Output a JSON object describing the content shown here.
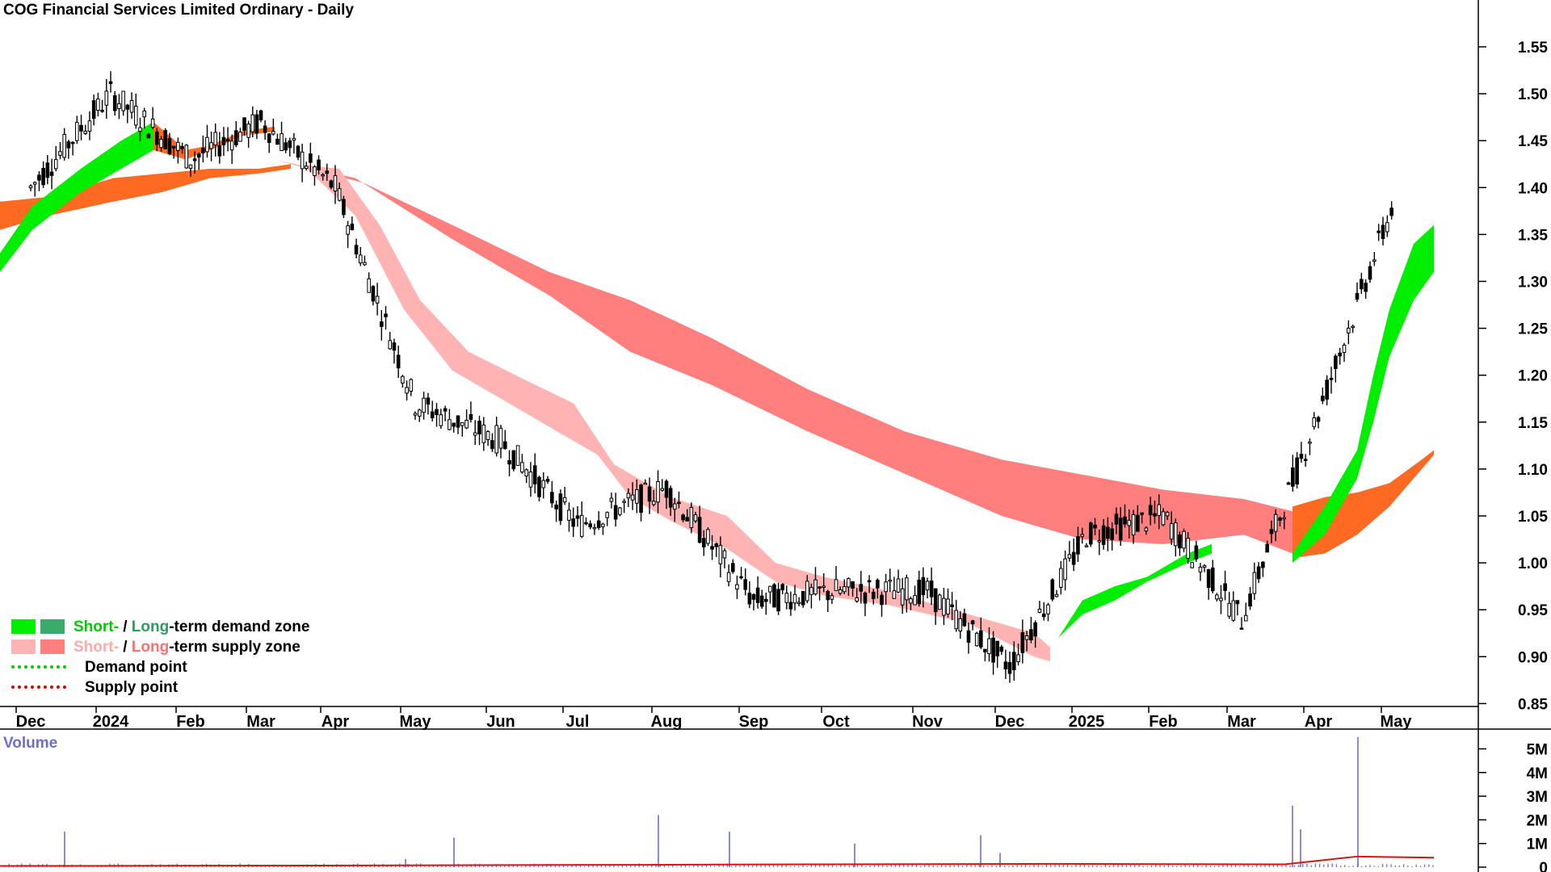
{
  "title": "COG Financial Services Limited Ordinary - Daily",
  "colors": {
    "st_demand": "#00ee00",
    "lt_demand": "#3aab6a",
    "st_supply": "#ffb3b3",
    "lt_supply": "#ff7f7f",
    "bull_zone": "#00ee00",
    "bear_zone": "#ff6a22",
    "candle": "#000000",
    "volume_bar": "#6f6fc8",
    "volume_avg": "#dd1111",
    "demand_point": "#00cc00",
    "supply_point": "#dd0000"
  },
  "legend": {
    "row1": {
      "short": "Short-",
      "sep": " / ",
      "long": "Long",
      "rest": "-term demand zone"
    },
    "row2": {
      "short": "Short-",
      "sep": " / ",
      "long": "Long",
      "rest": "-term supply zone"
    },
    "row3": "Demand point",
    "row4": "Supply point"
  },
  "chart_data": [
    {
      "type": "candlestick",
      "title": "COG Financial Services Limited Ordinary - Daily",
      "x_labels": [
        "Dec",
        "2024",
        "Feb",
        "Mar",
        "Apr",
        "May",
        "Jun",
        "Jul",
        "Aug",
        "Sep",
        "Oct",
        "Nov",
        "Dec",
        "2025",
        "Feb",
        "Mar",
        "Apr",
        "May"
      ],
      "y_ticks": [
        "1.55",
        "1.50",
        "1.45",
        "1.40",
        "1.35",
        "1.30",
        "1.25",
        "1.20",
        "1.15",
        "1.10",
        "1.05",
        "1.00",
        "0.95",
        "0.90",
        "0.85"
      ],
      "ylim": [
        0.83,
        1.59
      ],
      "price_path": [
        [
          "Dec",
          1.4
        ],
        [
          "2024",
          1.5
        ],
        [
          "Feb",
          1.43
        ],
        [
          "Mar",
          1.47
        ],
        [
          "Apr",
          1.4
        ],
        [
          "May",
          1.17
        ],
        [
          "Jun",
          1.13
        ],
        [
          "Jul",
          1.04
        ],
        [
          "Aug",
          1.08
        ],
        [
          "Sep",
          0.96
        ],
        [
          "Oct",
          0.97
        ],
        [
          "Nov",
          0.97
        ],
        [
          "Dec",
          0.89
        ],
        [
          "2025",
          1.03
        ],
        [
          "Feb",
          1.05
        ],
        [
          "Mar",
          0.94
        ],
        [
          "Apr",
          1.16
        ],
        [
          "May",
          1.39
        ]
      ],
      "annotations": [
        "Short-/Long-term demand zone",
        "Short-/Long-term supply zone",
        "Demand point",
        "Supply point"
      ]
    },
    {
      "type": "bar",
      "title": "Volume",
      "y_ticks": [
        "5M",
        "4M",
        "3M",
        "2M",
        "1M",
        "0"
      ],
      "ylim": [
        0,
        5.7
      ],
      "unit": "M",
      "spikes": [
        [
          "2024",
          1.5
        ],
        [
          "May",
          0.35
        ],
        [
          "May",
          1.25
        ],
        [
          "Aug",
          2.2
        ],
        [
          "Aug",
          1.5
        ],
        [
          "Oct",
          1.0
        ],
        [
          "Dec",
          1.35
        ],
        [
          "Dec",
          0.6
        ],
        [
          "Apr",
          2.6
        ],
        [
          "Apr",
          1.6
        ],
        [
          "Apr",
          5.5
        ]
      ]
    }
  ]
}
